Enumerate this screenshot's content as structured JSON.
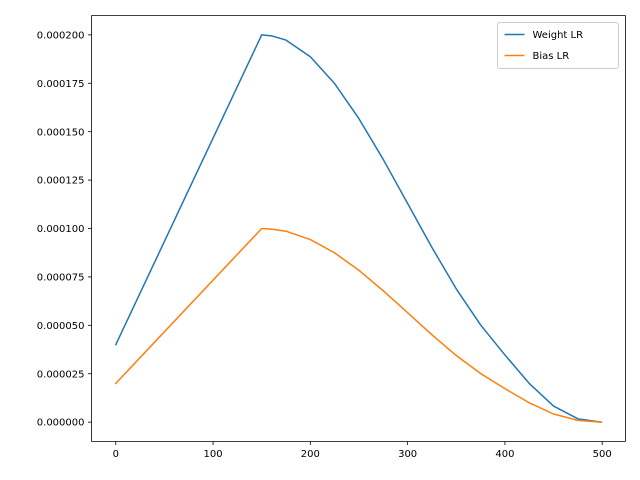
{
  "chart_data": {
    "type": "line",
    "title": "",
    "xlabel": "",
    "ylabel": "",
    "xlim": [
      -24.95,
      523.95
    ],
    "ylim": [
      -1e-05,
      0.00021
    ],
    "x_ticks": [
      0,
      100,
      200,
      300,
      400,
      500
    ],
    "x_tick_labels": [
      "0",
      "100",
      "200",
      "300",
      "400",
      "500"
    ],
    "y_ticks": [
      0.0,
      2.5e-05,
      5e-05,
      7.5e-05,
      0.0001,
      0.000125,
      0.00015,
      0.000175,
      0.0002
    ],
    "y_tick_labels": [
      "0.000000",
      "0.000025",
      "0.000050",
      "0.000075",
      "0.000100",
      "0.000125",
      "0.000150",
      "0.000175",
      "0.000200"
    ],
    "grid": false,
    "legend_position": "top-right",
    "series": [
      {
        "name": "Weight LR",
        "color": "#1f77b4",
        "x": [
          0,
          150,
          160,
          175,
          200,
          225,
          250,
          275,
          300,
          325,
          350,
          375,
          400,
          425,
          450,
          475,
          499
        ],
        "values": [
          4e-05,
          0.0002,
          0.0001995,
          0.0001973,
          0.0001887,
          0.0001748,
          0.0001567,
          0.0001356,
          0.0001129,
          9.02e-05,
          6.88e-05,
          5.02e-05,
          3.47e-05,
          2e-05,
          8.3e-06,
          1.7e-06,
          0.0
        ]
      },
      {
        "name": "Bias LR",
        "color": "#ff7f0e",
        "x": [
          0,
          150,
          160,
          175,
          200,
          225,
          250,
          275,
          300,
          325,
          350,
          375,
          400,
          425,
          450,
          475,
          499
        ],
        "values": [
          2e-05,
          0.0001,
          9.97e-05,
          9.86e-05,
          9.43e-05,
          8.74e-05,
          7.84e-05,
          6.78e-05,
          5.65e-05,
          4.51e-05,
          3.44e-05,
          2.51e-05,
          1.73e-05,
          1e-05,
          4.2e-06,
          9e-07,
          0.0
        ]
      }
    ]
  }
}
